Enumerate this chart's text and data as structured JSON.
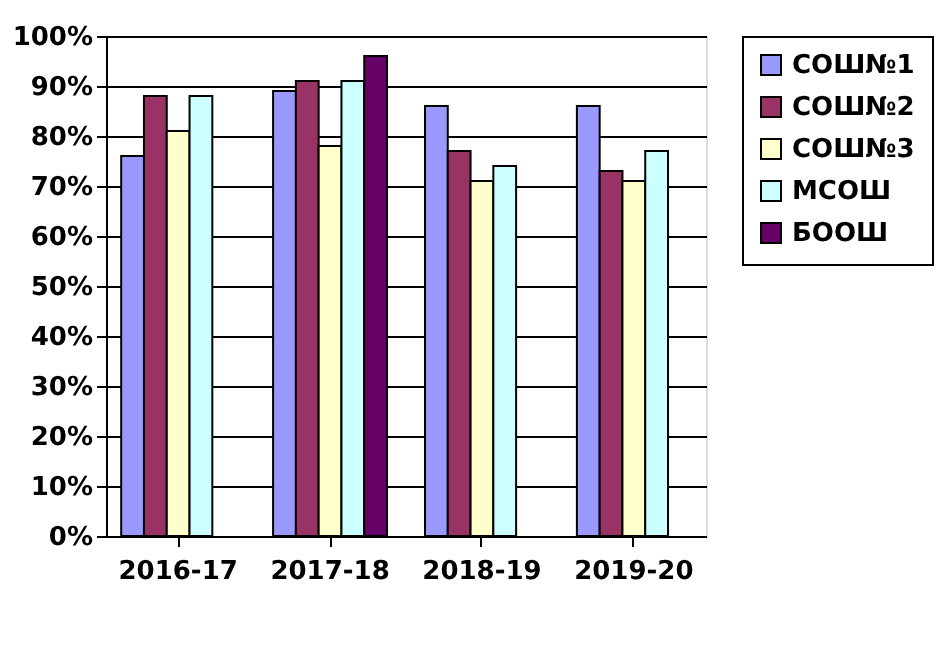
{
  "chart_data": {
    "type": "bar",
    "categories": [
      "2016-17",
      "2017-18",
      "2018-19",
      "2019-20"
    ],
    "series": [
      {
        "name": "СОШ№1",
        "color": "#9999ff",
        "values": [
          76,
          89,
          86,
          86
        ]
      },
      {
        "name": "СОШ№2",
        "color": "#993366",
        "values": [
          88,
          91,
          77,
          73
        ]
      },
      {
        "name": "СОШ№3",
        "color": "#ffffcc",
        "values": [
          81,
          78,
          71,
          71
        ]
      },
      {
        "name": "МСОШ",
        "color": "#ccffff",
        "values": [
          88,
          91,
          74,
          77
        ]
      },
      {
        "name": "БООШ",
        "color": "#660066",
        "values": [
          null,
          96,
          null,
          null
        ]
      }
    ],
    "ylim": [
      0,
      100
    ],
    "yticks": [
      {
        "value": 0,
        "label": "0%"
      },
      {
        "value": 10,
        "label": "10%"
      },
      {
        "value": 20,
        "label": "20%"
      },
      {
        "value": 30,
        "label": "30%"
      },
      {
        "value": 40,
        "label": "40%"
      },
      {
        "value": 50,
        "label": "50%"
      },
      {
        "value": 60,
        "label": "60%"
      },
      {
        "value": 70,
        "label": "70%"
      },
      {
        "value": 80,
        "label": "80%"
      },
      {
        "value": 90,
        "label": "90%"
      },
      {
        "value": 100,
        "label": "100%"
      }
    ],
    "grid": "y",
    "legend": "right"
  }
}
